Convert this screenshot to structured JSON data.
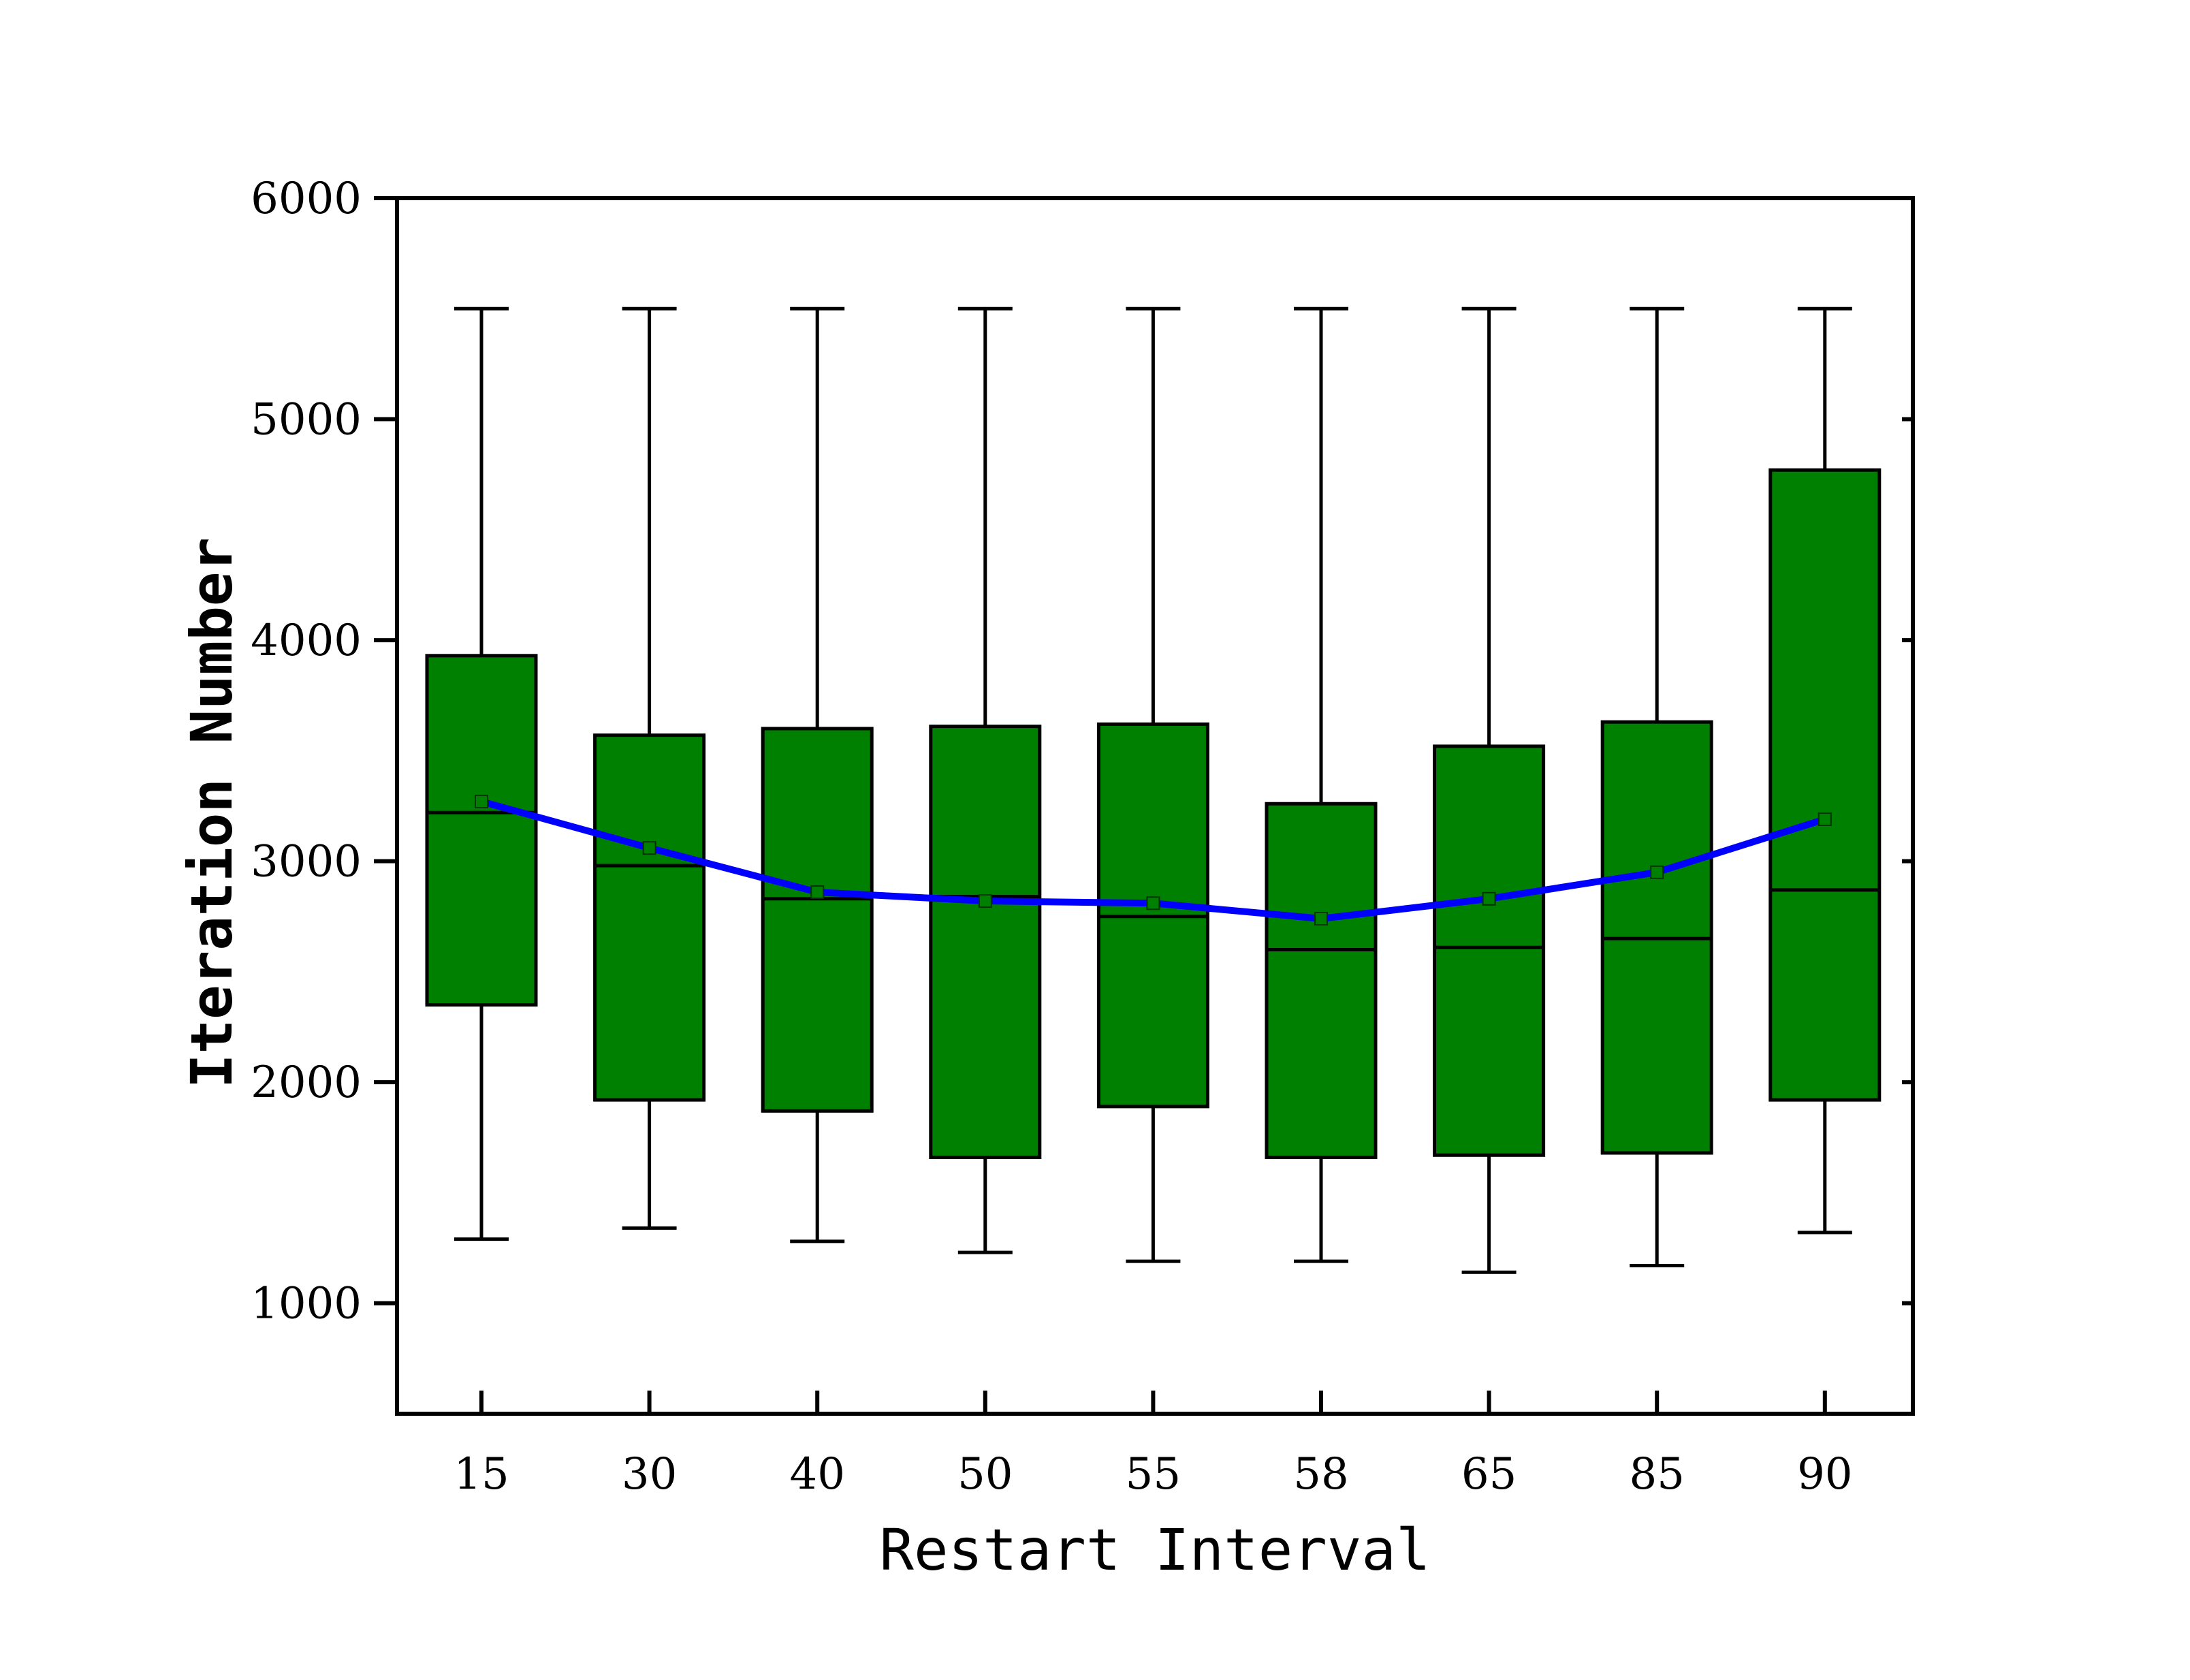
{
  "chart_data": {
    "type": "box",
    "title": "",
    "xlabel": "Restart Interval",
    "ylabel": "Iteration Number",
    "categories": [
      "15",
      "30",
      "40",
      "50",
      "55",
      "58",
      "65",
      "85",
      "90"
    ],
    "ylim": [
      500,
      6000
    ],
    "yticks": [
      1000,
      2000,
      3000,
      4000,
      5000,
      6000
    ],
    "yticks_minor_right": [
      1000,
      2000,
      3000,
      4000,
      5000
    ],
    "grid": false,
    "legend": "none",
    "box_color": "#008000",
    "edge_color": "#000000",
    "mean_line_color": "#0000ff",
    "series": [
      {
        "boxes": [
          {
            "category": "15",
            "whisker_low": 1290,
            "q1": 2350,
            "median": 3220,
            "q3": 3930,
            "whisker_high": 5500,
            "mean": 3270
          },
          {
            "category": "30",
            "whisker_low": 1340,
            "q1": 1920,
            "median": 2980,
            "q3": 3570,
            "whisker_high": 5500,
            "mean": 3060
          },
          {
            "category": "40",
            "whisker_low": 1280,
            "q1": 1870,
            "median": 2830,
            "q3": 3600,
            "whisker_high": 5500,
            "mean": 2860
          },
          {
            "category": "50",
            "whisker_low": 1230,
            "q1": 1660,
            "median": 2840,
            "q3": 3610,
            "whisker_high": 5500,
            "mean": 2820
          },
          {
            "category": "55",
            "whisker_low": 1190,
            "q1": 1890,
            "median": 2750,
            "q3": 3620,
            "whisker_high": 5500,
            "mean": 2810
          },
          {
            "category": "58",
            "whisker_low": 1190,
            "q1": 1660,
            "median": 2600,
            "q3": 3260,
            "whisker_high": 5500,
            "mean": 2740
          },
          {
            "category": "65",
            "whisker_low": 1140,
            "q1": 1670,
            "median": 2610,
            "q3": 3520,
            "whisker_high": 5500,
            "mean": 2830
          },
          {
            "category": "85",
            "whisker_low": 1170,
            "q1": 1680,
            "median": 2650,
            "q3": 3630,
            "whisker_high": 5500,
            "mean": 2950
          },
          {
            "category": "90",
            "whisker_low": 1320,
            "q1": 1920,
            "median": 2870,
            "q3": 4770,
            "whisker_high": 5500,
            "mean": 3190
          }
        ]
      }
    ]
  }
}
